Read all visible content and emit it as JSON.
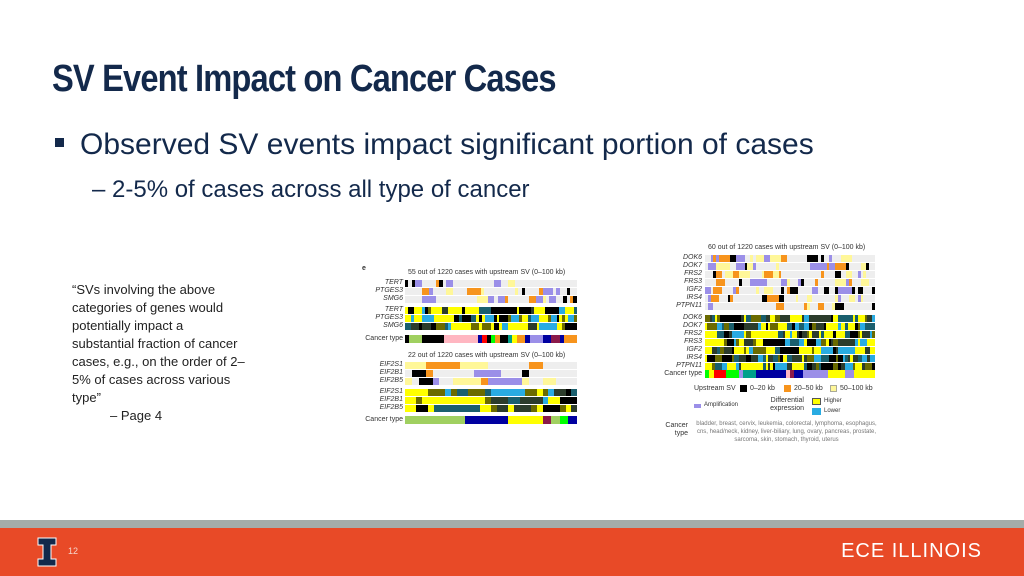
{
  "slide": {
    "title": "SV Event Impact on Cancer Cases",
    "bullet": "Observed SV events impact significant portion of cases",
    "sub_bullet": "– 2-5% of cases across all type of cancer",
    "quote": "“SVs involving the above categories of genes would potentially impact a substantial fraction of cancer cases, e.g., on the order of 2–5% of cases across various type”",
    "quote_source": "– Page 4",
    "page_number": "12",
    "brand": "ECE ILLINOIS"
  },
  "figure_left": {
    "panel_letter": "e",
    "caption1": "55 out of 1220 cases with upstream SV (0–100 kb)",
    "genes1": [
      "TERT",
      "PTGES3",
      "SMG6"
    ],
    "caption2": "22 out of 1220 cases with upstream SV (0–100 kb)",
    "genes2": [
      "EIF2S1",
      "EIF2B1",
      "EIF2B5"
    ],
    "cancer_type_label": "Cancer type"
  },
  "figure_right": {
    "caption": "60 out of 1220 cases with upstream SV (0–100 kb)",
    "genes": [
      "DOK6",
      "DOK7",
      "FRS2",
      "FRS3",
      "IGF2",
      "IRS4",
      "PTPN11"
    ],
    "cancer_type_label": "Cancer type",
    "legend": {
      "upstream_sv": "Upstream SV",
      "sv_bins": [
        "0–20 kb",
        "20–50 kb",
        "50–100 kb"
      ],
      "amplification": "Amplification",
      "diff_expr": "Differential expression",
      "higher": "Higher",
      "lower": "Lower",
      "cancer_type": "Cancer type",
      "cancer_types": "bladder, breast, cervix, leukemia, colorectal, lymphoma, esophagus, cns, head/neck, kidney, liver-biliary, lung, ovary, pancreas, prostate, sarcoma, skin, stomach, thyroid, uterus"
    }
  },
  "colors": {
    "navy": "#13294b",
    "orange": "#e84a27",
    "sv_short": "#000000",
    "sv_mid": "#f7941d",
    "sv_long": "#fff799",
    "amp": "#9b8fe8",
    "higher": "#ffff00",
    "lower": "#29abe2"
  }
}
